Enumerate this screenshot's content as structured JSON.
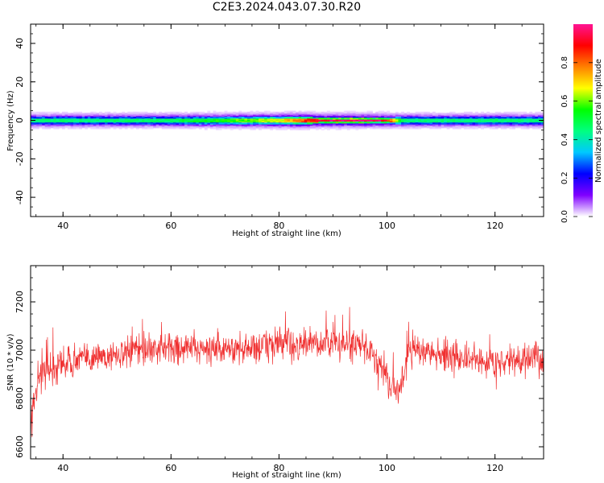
{
  "title": "C2E3.2024.043.07.30.R20",
  "chart_data": [
    {
      "type": "heatmap",
      "xlabel": "Height of straight line (km)",
      "ylabel": "Frequency (Hz)",
      "xlim": [
        34,
        129
      ],
      "ylim": [
        -50,
        50
      ],
      "xticks": [
        40,
        60,
        80,
        100,
        120
      ],
      "yticks": [
        -40,
        -20,
        0,
        20,
        40
      ],
      "ytick_labels": [
        "-40",
        "-20",
        "0",
        "20",
        "40"
      ],
      "band_center_hz": 0,
      "band_profile": [
        {
          "x": 34,
          "amplitude": 0.45,
          "width_hz": 3
        },
        {
          "x": 40,
          "amplitude": 0.45,
          "width_hz": 3
        },
        {
          "x": 50,
          "amplitude": 0.45,
          "width_hz": 3
        },
        {
          "x": 60,
          "amplitude": 0.47,
          "width_hz": 3
        },
        {
          "x": 70,
          "amplitude": 0.55,
          "width_hz": 3
        },
        {
          "x": 80,
          "amplitude": 0.65,
          "width_hz": 3
        },
        {
          "x": 84,
          "amplitude": 0.8,
          "width_hz": 3
        },
        {
          "x": 88,
          "amplitude": 0.95,
          "width_hz": 2
        },
        {
          "x": 95,
          "amplitude": 1.0,
          "width_hz": 2
        },
        {
          "x": 100,
          "amplitude": 0.9,
          "width_hz": 2
        },
        {
          "x": 103,
          "amplitude": 0.45,
          "width_hz": 3
        },
        {
          "x": 110,
          "amplitude": 0.45,
          "width_hz": 3
        },
        {
          "x": 120,
          "amplitude": 0.45,
          "width_hz": 3
        },
        {
          "x": 129,
          "amplitude": 0.45,
          "width_hz": 3
        }
      ],
      "colorbar": {
        "label": "Normalized spectral amplitude",
        "range": [
          0,
          1
        ],
        "ticks": [
          0.0,
          0.2,
          0.4,
          0.6,
          0.8
        ],
        "tick_labels": [
          "0.0",
          "0.2",
          "0.4",
          "0.6",
          "0.8"
        ],
        "colormap": [
          "#ffffff",
          "#8000ff",
          "#0000ff",
          "#00c8ff",
          "#00ff80",
          "#00ff00",
          "#ffff00",
          "#ff8000",
          "#ff0000",
          "#ff1493"
        ]
      }
    },
    {
      "type": "line",
      "xlabel": "Height of straight line (km)",
      "ylabel": "SNR (10 * v/v)",
      "xlim": [
        34,
        129
      ],
      "ylim": [
        6550,
        7350
      ],
      "xticks": [
        40,
        60,
        80,
        100,
        120
      ],
      "yticks": [
        6600,
        6800,
        7000,
        7200
      ],
      "ytick_labels": [
        "6600",
        "6800",
        "7000",
        "7200"
      ],
      "color": "#f03030",
      "series": [
        {
          "x": [
            34,
            35,
            36,
            38,
            40,
            45,
            50,
            55,
            60,
            65,
            70,
            75,
            80,
            85,
            90,
            95,
            98,
            100,
            101,
            102,
            103,
            104,
            106,
            110,
            115,
            120,
            125,
            129
          ],
          "y": [
            6700,
            6850,
            6900,
            6920,
            6950,
            6970,
            6980,
            7000,
            7010,
            7010,
            7000,
            7010,
            7030,
            7020,
            7030,
            7020,
            6970,
            6900,
            6840,
            6830,
            6900,
            6990,
            7000,
            6980,
            6960,
            6950,
            6960,
            6960
          ],
          "noise_amplitude": [
            150,
            140,
            120,
            110,
            100,
            90,
            90,
            90,
            90,
            90,
            95,
            100,
            105,
            100,
            95,
            95,
            100,
            110,
            130,
            120,
            110,
            100,
            90,
            90,
            90,
            90,
            95,
            100
          ]
        }
      ]
    }
  ]
}
